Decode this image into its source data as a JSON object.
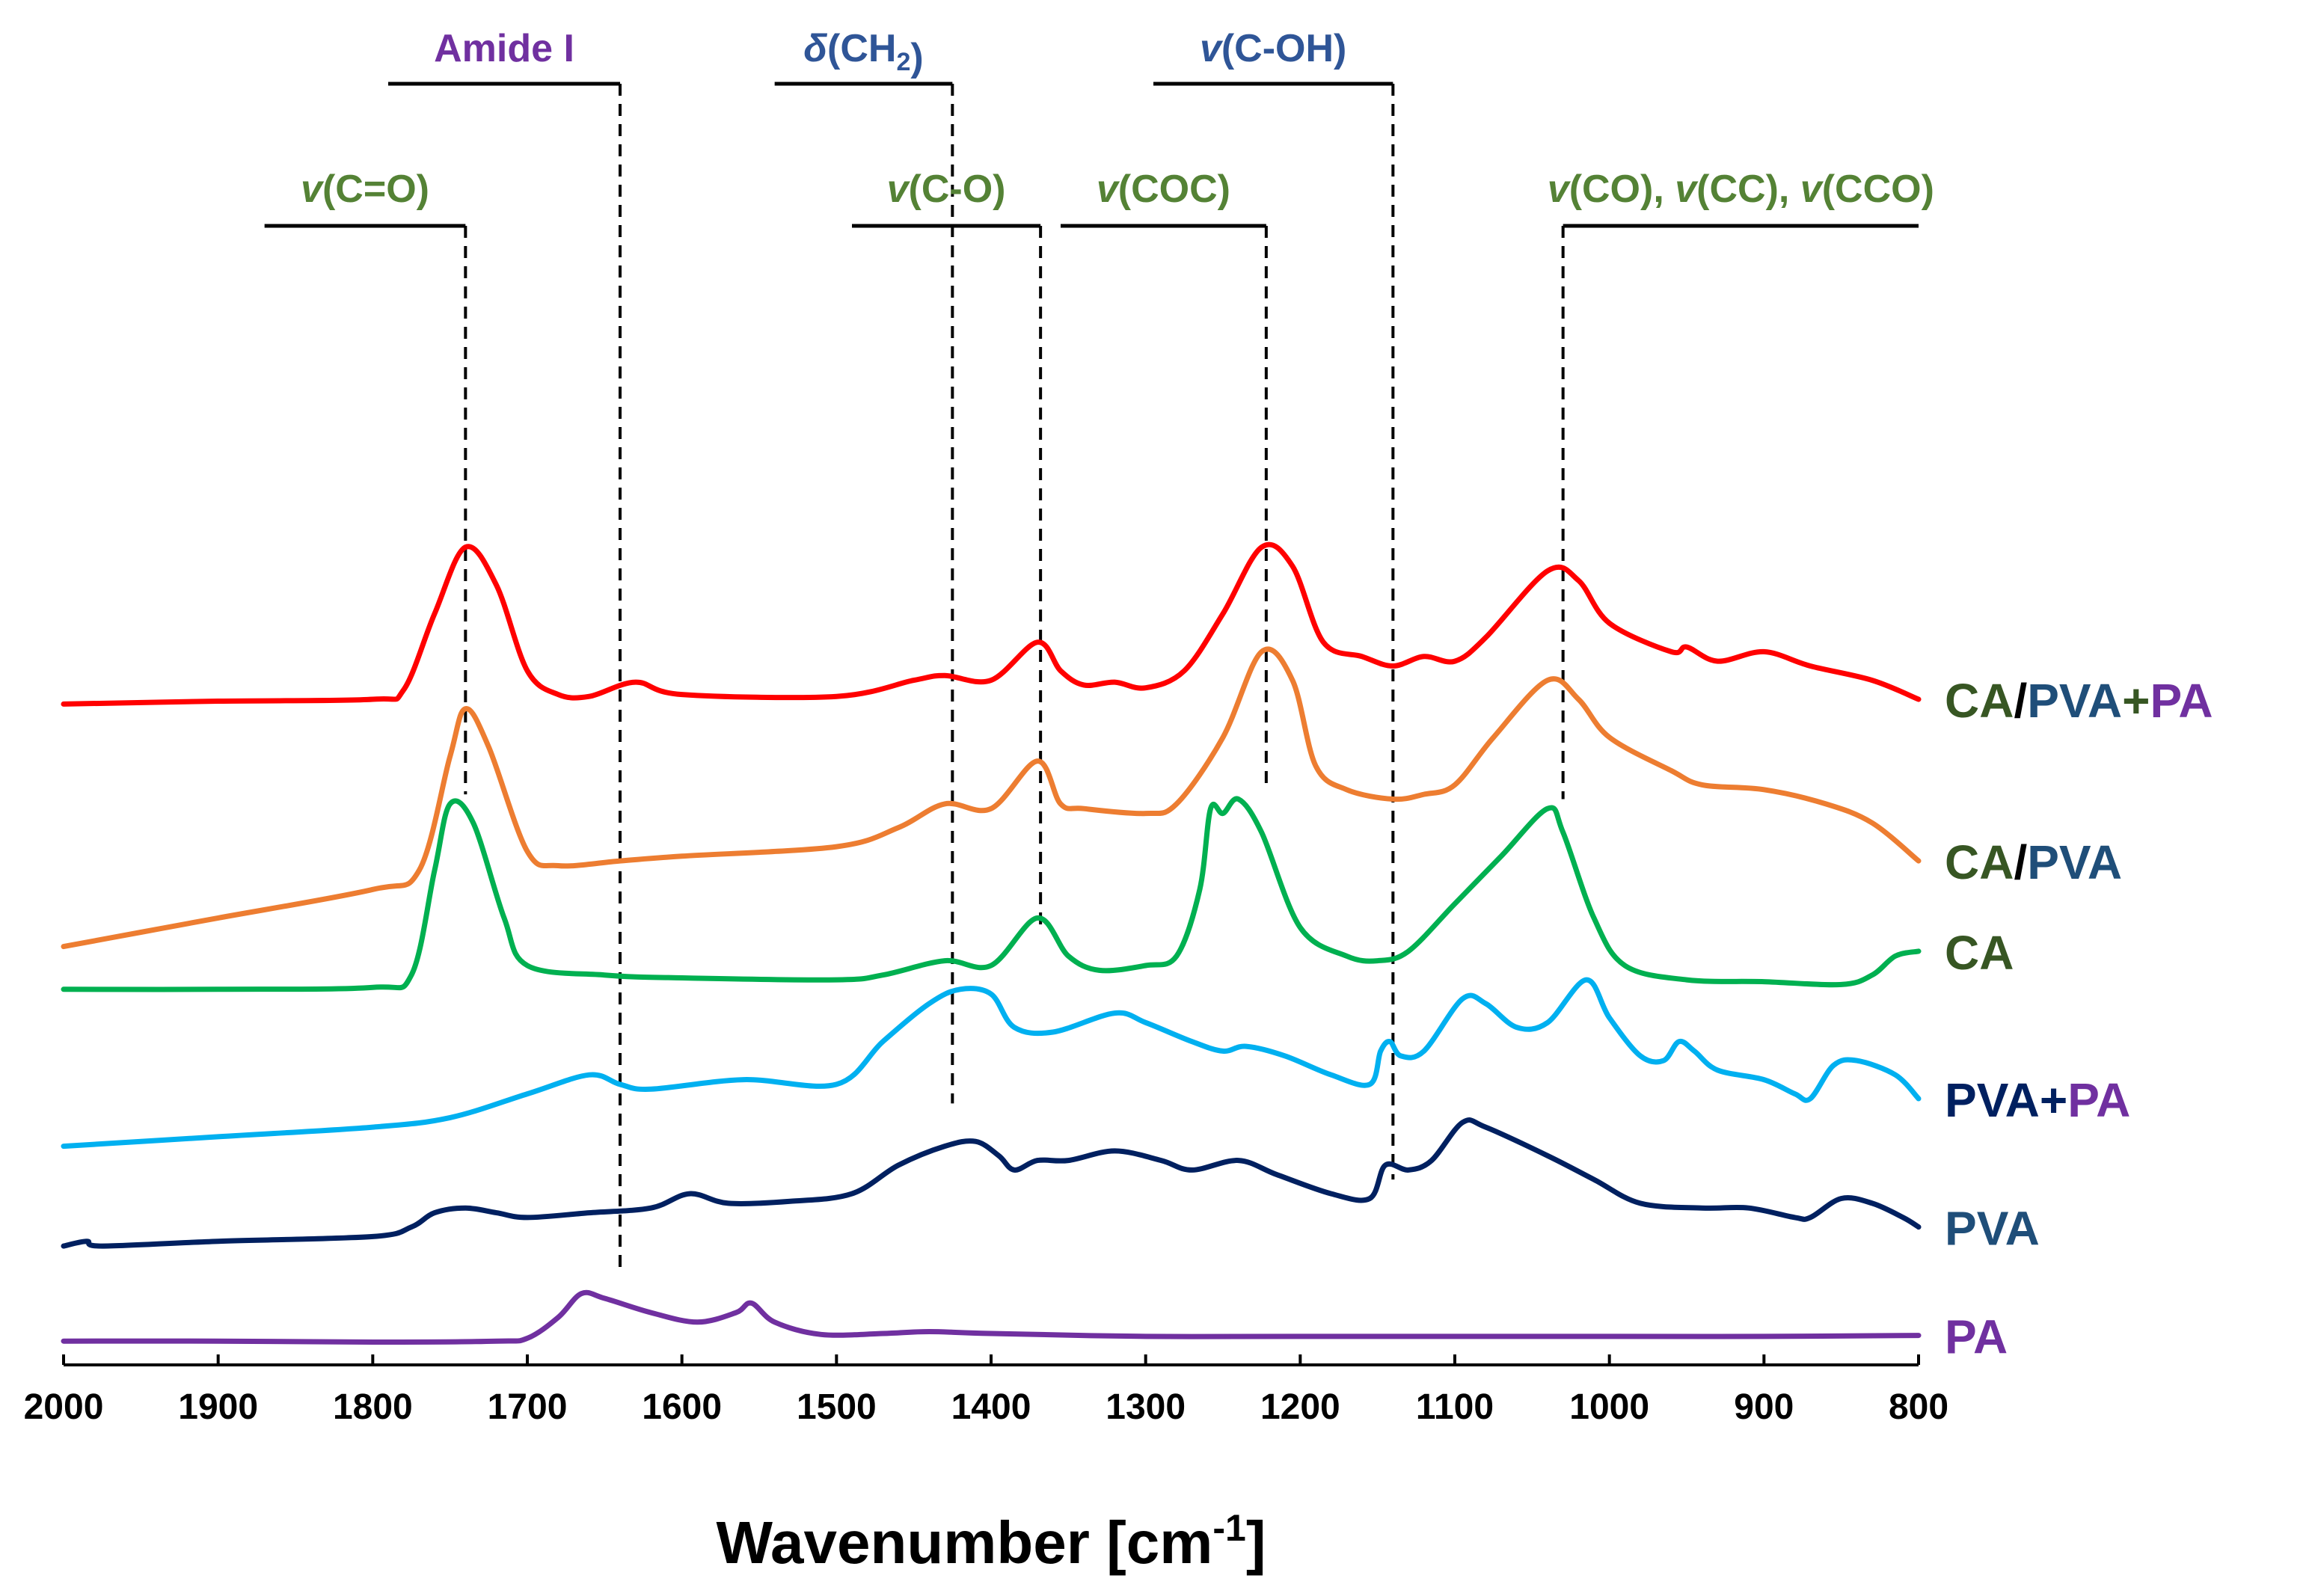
{
  "chart_data": {
    "type": "line",
    "title": "",
    "xlabel": "Wavenumber [cm",
    "xlabel_superscript": "-1",
    "xlabel_close": "]",
    "ylabel": "",
    "xlim": [
      2000,
      800
    ],
    "x_reversed": true,
    "ylim": [
      0,
      10.5
    ],
    "grid": false,
    "x_ticks": [
      2000,
      1900,
      1800,
      1700,
      1600,
      1500,
      1400,
      1300,
      1200,
      1100,
      1000,
      900,
      800
    ],
    "series": [
      {
        "name": "CA/PVA+PA",
        "color": "#ff0000",
        "label_parts": [
          {
            "text": "CA",
            "color": "#375623"
          },
          {
            "text": "/",
            "color": "#000000"
          },
          {
            "text": "PVA",
            "color": "#1f4e79"
          },
          {
            "text": "+",
            "color": "#375623"
          },
          {
            "text": "PA",
            "color": "#7030a0"
          }
        ],
        "points": [
          [
            2000,
            6.95
          ],
          [
            1900,
            6.98
          ],
          [
            1800,
            7.0
          ],
          [
            1780,
            7.1
          ],
          [
            1760,
            7.9
          ],
          [
            1740,
            8.6
          ],
          [
            1720,
            8.2
          ],
          [
            1700,
            7.3
          ],
          [
            1680,
            7.05
          ],
          [
            1660,
            7.03
          ],
          [
            1630,
            7.18
          ],
          [
            1600,
            7.05
          ],
          [
            1500,
            7.03
          ],
          [
            1450,
            7.2
          ],
          [
            1430,
            7.25
          ],
          [
            1400,
            7.2
          ],
          [
            1370,
            7.6
          ],
          [
            1355,
            7.3
          ],
          [
            1340,
            7.15
          ],
          [
            1320,
            7.18
          ],
          [
            1300,
            7.12
          ],
          [
            1275,
            7.3
          ],
          [
            1250,
            7.9
          ],
          [
            1225,
            8.6
          ],
          [
            1205,
            8.4
          ],
          [
            1185,
            7.6
          ],
          [
            1160,
            7.45
          ],
          [
            1140,
            7.35
          ],
          [
            1120,
            7.45
          ],
          [
            1100,
            7.4
          ],
          [
            1080,
            7.65
          ],
          [
            1040,
            8.35
          ],
          [
            1020,
            8.25
          ],
          [
            1000,
            7.8
          ],
          [
            960,
            7.5
          ],
          [
            950,
            7.55
          ],
          [
            930,
            7.4
          ],
          [
            900,
            7.5
          ],
          [
            870,
            7.35
          ],
          [
            830,
            7.2
          ],
          [
            800,
            7.0
          ]
        ]
      },
      {
        "name": "CA/PVA",
        "color": "#ed7d31",
        "label_parts": [
          {
            "text": "CA",
            "color": "#375623"
          },
          {
            "text": "/",
            "color": "#000000"
          },
          {
            "text": "PVA",
            "color": "#1f4e79"
          }
        ],
        "points": [
          [
            2000,
            4.4
          ],
          [
            1950,
            4.55
          ],
          [
            1900,
            4.7
          ],
          [
            1800,
            5.0
          ],
          [
            1770,
            5.2
          ],
          [
            1750,
            6.4
          ],
          [
            1740,
            6.9
          ],
          [
            1725,
            6.5
          ],
          [
            1700,
            5.4
          ],
          [
            1680,
            5.25
          ],
          [
            1640,
            5.3
          ],
          [
            1600,
            5.35
          ],
          [
            1500,
            5.45
          ],
          [
            1460,
            5.65
          ],
          [
            1430,
            5.9
          ],
          [
            1400,
            5.85
          ],
          [
            1370,
            6.35
          ],
          [
            1355,
            5.9
          ],
          [
            1340,
            5.85
          ],
          [
            1300,
            5.8
          ],
          [
            1280,
            5.9
          ],
          [
            1250,
            6.6
          ],
          [
            1225,
            7.5
          ],
          [
            1205,
            7.2
          ],
          [
            1190,
            6.3
          ],
          [
            1170,
            6.05
          ],
          [
            1140,
            5.95
          ],
          [
            1120,
            6.0
          ],
          [
            1100,
            6.1
          ],
          [
            1075,
            6.6
          ],
          [
            1040,
            7.2
          ],
          [
            1020,
            7.0
          ],
          [
            1000,
            6.6
          ],
          [
            960,
            6.25
          ],
          [
            940,
            6.1
          ],
          [
            900,
            6.05
          ],
          [
            860,
            5.9
          ],
          [
            830,
            5.7
          ],
          [
            800,
            5.3
          ]
        ]
      },
      {
        "name": "CA",
        "color": "#00b050",
        "label_parts": [
          {
            "text": "CA",
            "color": "#375623"
          }
        ],
        "points": [
          [
            2000,
            3.95
          ],
          [
            1900,
            3.95
          ],
          [
            1800,
            3.97
          ],
          [
            1775,
            4.1
          ],
          [
            1760,
            5.2
          ],
          [
            1750,
            5.9
          ],
          [
            1735,
            5.7
          ],
          [
            1715,
            4.7
          ],
          [
            1700,
            4.2
          ],
          [
            1650,
            4.1
          ],
          [
            1600,
            4.07
          ],
          [
            1500,
            4.05
          ],
          [
            1470,
            4.1
          ],
          [
            1430,
            4.25
          ],
          [
            1400,
            4.2
          ],
          [
            1370,
            4.7
          ],
          [
            1350,
            4.3
          ],
          [
            1330,
            4.15
          ],
          [
            1300,
            4.2
          ],
          [
            1280,
            4.3
          ],
          [
            1265,
            5.0
          ],
          [
            1258,
            5.85
          ],
          [
            1250,
            5.8
          ],
          [
            1240,
            5.95
          ],
          [
            1225,
            5.6
          ],
          [
            1200,
            4.6
          ],
          [
            1170,
            4.3
          ],
          [
            1150,
            4.25
          ],
          [
            1130,
            4.35
          ],
          [
            1100,
            4.85
          ],
          [
            1070,
            5.35
          ],
          [
            1040,
            5.85
          ],
          [
            1030,
            5.6
          ],
          [
            1010,
            4.7
          ],
          [
            990,
            4.2
          ],
          [
            950,
            4.05
          ],
          [
            900,
            4.03
          ],
          [
            850,
            4.0
          ],
          [
            830,
            4.1
          ],
          [
            815,
            4.3
          ],
          [
            800,
            4.35
          ]
        ]
      },
      {
        "name": "PVA+PA",
        "color": "#00b0f0",
        "label_parts": [
          {
            "text": "PVA",
            "color": "#002060"
          },
          {
            "text": "+",
            "color": "#002060"
          },
          {
            "text": "PA",
            "color": "#7030a0"
          }
        ],
        "points": [
          [
            2000,
            2.3
          ],
          [
            1900,
            2.4
          ],
          [
            1800,
            2.5
          ],
          [
            1750,
            2.6
          ],
          [
            1700,
            2.85
          ],
          [
            1660,
            3.05
          ],
          [
            1640,
            2.95
          ],
          [
            1620,
            2.9
          ],
          [
            1560,
            3.0
          ],
          [
            1500,
            2.95
          ],
          [
            1470,
            3.4
          ],
          [
            1440,
            3.8
          ],
          [
            1420,
            3.95
          ],
          [
            1400,
            3.9
          ],
          [
            1385,
            3.55
          ],
          [
            1360,
            3.5
          ],
          [
            1320,
            3.7
          ],
          [
            1300,
            3.6
          ],
          [
            1270,
            3.4
          ],
          [
            1250,
            3.3
          ],
          [
            1235,
            3.35
          ],
          [
            1210,
            3.25
          ],
          [
            1180,
            3.05
          ],
          [
            1155,
            2.95
          ],
          [
            1148,
            3.3
          ],
          [
            1142,
            3.4
          ],
          [
            1135,
            3.25
          ],
          [
            1120,
            3.3
          ],
          [
            1095,
            3.85
          ],
          [
            1080,
            3.8
          ],
          [
            1060,
            3.55
          ],
          [
            1040,
            3.6
          ],
          [
            1015,
            4.05
          ],
          [
            1000,
            3.65
          ],
          [
            980,
            3.25
          ],
          [
            965,
            3.2
          ],
          [
            955,
            3.4
          ],
          [
            945,
            3.3
          ],
          [
            930,
            3.1
          ],
          [
            900,
            3.0
          ],
          [
            880,
            2.85
          ],
          [
            870,
            2.8
          ],
          [
            855,
            3.15
          ],
          [
            840,
            3.2
          ],
          [
            815,
            3.05
          ],
          [
            800,
            2.8
          ]
        ]
      },
      {
        "name": "PVA",
        "color": "#002060",
        "label_parts": [
          {
            "text": "PVA",
            "color": "#1f4e79"
          }
        ],
        "points": [
          [
            2000,
            1.25
          ],
          [
            1985,
            1.3
          ],
          [
            1975,
            1.25
          ],
          [
            1900,
            1.3
          ],
          [
            1800,
            1.35
          ],
          [
            1775,
            1.45
          ],
          [
            1760,
            1.6
          ],
          [
            1740,
            1.65
          ],
          [
            1720,
            1.6
          ],
          [
            1700,
            1.55
          ],
          [
            1660,
            1.6
          ],
          [
            1620,
            1.65
          ],
          [
            1595,
            1.8
          ],
          [
            1570,
            1.7
          ],
          [
            1530,
            1.72
          ],
          [
            1490,
            1.8
          ],
          [
            1460,
            2.1
          ],
          [
            1430,
            2.3
          ],
          [
            1410,
            2.35
          ],
          [
            1395,
            2.2
          ],
          [
            1385,
            2.05
          ],
          [
            1370,
            2.15
          ],
          [
            1350,
            2.15
          ],
          [
            1320,
            2.25
          ],
          [
            1290,
            2.15
          ],
          [
            1270,
            2.05
          ],
          [
            1240,
            2.15
          ],
          [
            1215,
            2.0
          ],
          [
            1180,
            1.8
          ],
          [
            1155,
            1.75
          ],
          [
            1145,
            2.1
          ],
          [
            1130,
            2.05
          ],
          [
            1115,
            2.15
          ],
          [
            1095,
            2.55
          ],
          [
            1080,
            2.5
          ],
          [
            1040,
            2.2
          ],
          [
            1010,
            1.95
          ],
          [
            980,
            1.7
          ],
          [
            940,
            1.65
          ],
          [
            910,
            1.65
          ],
          [
            880,
            1.55
          ],
          [
            870,
            1.55
          ],
          [
            850,
            1.75
          ],
          [
            830,
            1.7
          ],
          [
            810,
            1.55
          ],
          [
            800,
            1.45
          ]
        ]
      },
      {
        "name": "PA",
        "color": "#7030a0",
        "label_parts": [
          {
            "text": "PA",
            "color": "#7030a0"
          }
        ],
        "points": [
          [
            2000,
            0.25
          ],
          [
            1900,
            0.25
          ],
          [
            1800,
            0.24
          ],
          [
            1720,
            0.25
          ],
          [
            1700,
            0.28
          ],
          [
            1680,
            0.5
          ],
          [
            1665,
            0.75
          ],
          [
            1650,
            0.7
          ],
          [
            1620,
            0.55
          ],
          [
            1590,
            0.45
          ],
          [
            1565,
            0.55
          ],
          [
            1555,
            0.65
          ],
          [
            1540,
            0.45
          ],
          [
            1510,
            0.32
          ],
          [
            1470,
            0.33
          ],
          [
            1440,
            0.35
          ],
          [
            1400,
            0.33
          ],
          [
            1300,
            0.3
          ],
          [
            1200,
            0.3
          ],
          [
            1000,
            0.3
          ],
          [
            900,
            0.3
          ],
          [
            800,
            0.31
          ]
        ]
      }
    ],
    "annotations": {
      "top_row": [
        {
          "parts": [
            {
              "text": "Amide I",
              "italic": false
            }
          ],
          "color": "#7030a0",
          "bracket": [
            1790,
            1640
          ],
          "drop_x": 1640,
          "drop_to": 1.0
        },
        {
          "parts": [
            {
              "text": "δ",
              "italic": true
            },
            {
              "text": "(CH",
              "italic": false
            },
            {
              "text": "2",
              "italic": false,
              "sub": true
            },
            {
              "text": ")",
              "italic": false
            }
          ],
          "color": "#2f5597",
          "bracket": [
            1540,
            1425
          ],
          "drop_x": 1425,
          "drop_to": 2.75
        },
        {
          "parts": [
            {
              "text": "v",
              "italic": true
            },
            {
              "text": "(C-OH)",
              "italic": false
            }
          ],
          "color": "#2f5597",
          "bracket": [
            1295,
            1140
          ],
          "drop_x": 1140,
          "drop_to": 1.95
        }
      ],
      "second_row": [
        {
          "parts": [
            {
              "text": "v",
              "italic": true
            },
            {
              "text": "(C=O)",
              "italic": false
            }
          ],
          "color": "#548235",
          "bracket": [
            1870,
            1740
          ],
          "drop_x": 1740,
          "drop_to": 6.0
        },
        {
          "parts": [
            {
              "text": "v",
              "italic": true
            },
            {
              "text": "(C-O)",
              "italic": false
            }
          ],
          "color": "#548235",
          "bracket": [
            1490,
            1368
          ],
          "drop_x": 1368,
          "drop_to": 4.6
        },
        {
          "parts": [
            {
              "text": "v",
              "italic": true
            },
            {
              "text": "(COC)",
              "italic": false
            }
          ],
          "color": "#548235",
          "bracket": [
            1355,
            1222
          ],
          "drop_x": 1222,
          "drop_to": 6.05
        },
        {
          "parts": [
            {
              "text": "v",
              "italic": true
            },
            {
              "text": "(CO), ",
              "italic": false
            },
            {
              "text": "v",
              "italic": true
            },
            {
              "text": "(CC), ",
              "italic": false
            },
            {
              "text": "v",
              "italic": true
            },
            {
              "text": "(CCO)",
              "italic": false
            }
          ],
          "color": "#548235",
          "bracket": [
            1030,
            800
          ],
          "drop_x": 1030,
          "drop_to": 5.95
        }
      ]
    }
  }
}
